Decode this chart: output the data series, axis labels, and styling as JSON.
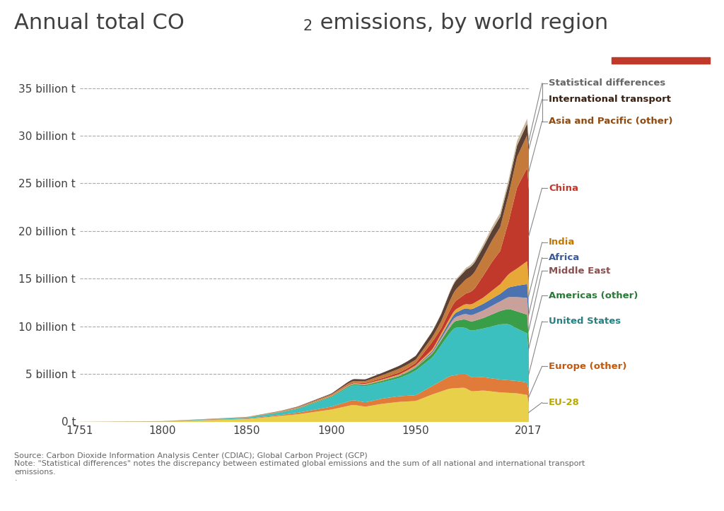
{
  "title": "Annual total CO₂ emissions, by world region",
  "background_color": "#ffffff",
  "plot_bg_color": "#ffffff",
  "text_color": "#404040",
  "grid_color": "#aaaaaa",
  "x_start": 1751,
  "x_end": 2017,
  "y_max": 37,
  "yticks": [
    0,
    5,
    10,
    15,
    20,
    25,
    30,
    35
  ],
  "ytick_labels": [
    "0 t",
    "5 billion t",
    "10 billion t",
    "15 billion t",
    "20 billion t",
    "25 billion t",
    "30 billion t",
    "35 billion t"
  ],
  "xticks": [
    1751,
    1800,
    1850,
    1900,
    1950,
    2017
  ],
  "source_text": "Source: Carbon Dioxide Information Analysis Center (CDIAC); Global Carbon Project (GCP)\nNote: \"Statistical differences\" notes the discrepancy between estimated global emissions and the sum of all national and international transport\nemissions.\n·",
  "regions": [
    {
      "name": "EU-28",
      "color": "#e8d04a",
      "label_color": "#b8a800"
    },
    {
      "name": "Europe (other)",
      "color": "#e07b39",
      "label_color": "#c05a10"
    },
    {
      "name": "United States",
      "color": "#3bbfbf",
      "label_color": "#2a8080"
    },
    {
      "name": "Americas (other)",
      "color": "#3a9e49",
      "label_color": "#2a7a38"
    },
    {
      "name": "Middle East",
      "color": "#c9a09a",
      "label_color": "#8a5050"
    },
    {
      "name": "Africa",
      "color": "#4c72b0",
      "label_color": "#3a5a9a"
    },
    {
      "name": "India",
      "color": "#e8a838",
      "label_color": "#c07800"
    },
    {
      "name": "China",
      "color": "#c0392b",
      "label_color": "#c0392b"
    },
    {
      "name": "Asia and Pacific (other)",
      "color": "#c47a3a",
      "label_color": "#904a10"
    },
    {
      "name": "International transport",
      "color": "#5c4033",
      "label_color": "#3a2010"
    },
    {
      "name": "Statistical differences",
      "color": "#c8b89a",
      "label_color": "#666666"
    }
  ],
  "logo_bg": "#1a3a5c",
  "logo_accent": "#c0392b",
  "label_y_positions": [
    35.5,
    33.8,
    31.5,
    24.5,
    18.8,
    17.2,
    15.8,
    13.2,
    10.5,
    5.8,
    2.0
  ]
}
